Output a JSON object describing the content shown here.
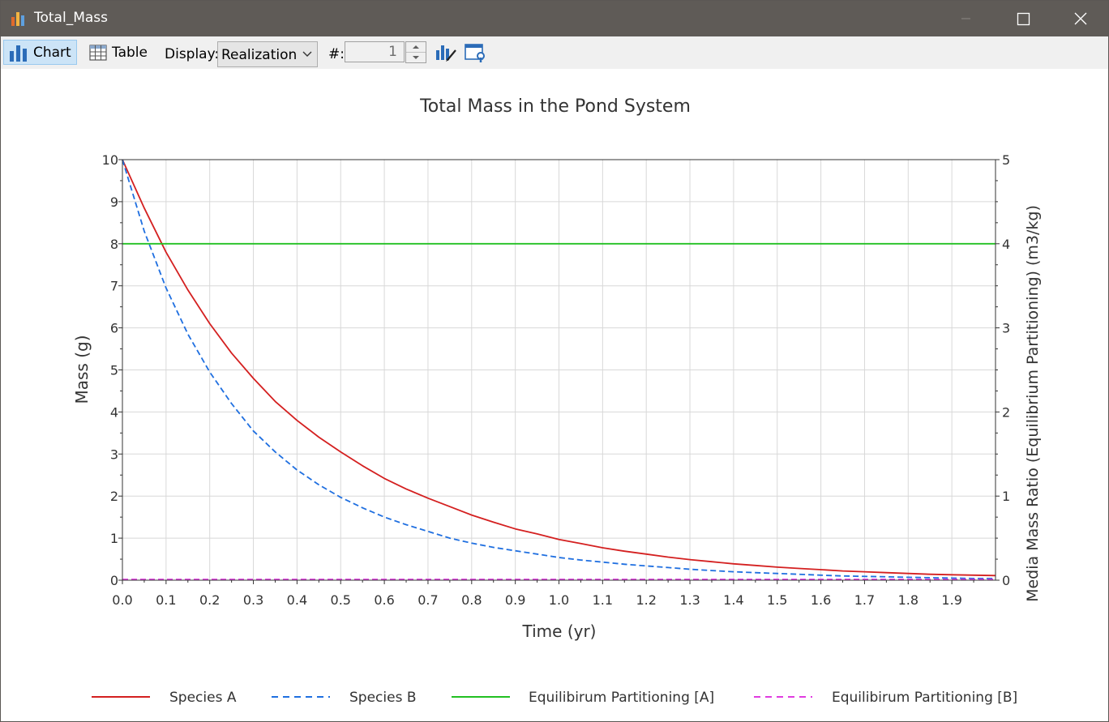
{
  "window": {
    "title": "Total_Mass"
  },
  "toolbar": {
    "chart_label": "Chart",
    "table_label": "Table",
    "display_label": "Display:",
    "display_value": "Realization",
    "realization_label": "#:",
    "realization_value": "1"
  },
  "chart_data": {
    "type": "line",
    "title": "Total Mass in the Pond System",
    "xlabel": "Time (yr)",
    "ylabel": "Mass (g)",
    "y2label": "Media Mass Ratio (Equilibrium Partitioning) (m3/kg)",
    "xlim": [
      0,
      2.0
    ],
    "ylim": [
      0,
      10
    ],
    "y2lim": [
      0,
      5
    ],
    "xticks": [
      "0.0",
      "0.1",
      "0.2",
      "0.3",
      "0.4",
      "0.5",
      "0.6",
      "0.7",
      "0.8",
      "0.9",
      "1.0",
      "1.1",
      "1.2",
      "1.3",
      "1.4",
      "1.5",
      "1.6",
      "1.7",
      "1.8",
      "1.9"
    ],
    "xtick_values": [
      0,
      0.1,
      0.2,
      0.3,
      0.4,
      0.5,
      0.6,
      0.7,
      0.8,
      0.9,
      1.0,
      1.1,
      1.2,
      1.3,
      1.4,
      1.5,
      1.6,
      1.7,
      1.8,
      1.9
    ],
    "yticks": [
      0,
      1,
      2,
      3,
      4,
      5,
      6,
      7,
      8,
      9,
      10
    ],
    "y2ticks": [
      0,
      1,
      2,
      3,
      4,
      5
    ],
    "grid": true,
    "legend_position": "bottom",
    "x": [
      0,
      0.05,
      0.1,
      0.15,
      0.2,
      0.25,
      0.3,
      0.35,
      0.4,
      0.45,
      0.5,
      0.55,
      0.6,
      0.65,
      0.7,
      0.75,
      0.8,
      0.85,
      0.9,
      0.95,
      1.0,
      1.05,
      1.1,
      1.15,
      1.2,
      1.25,
      1.3,
      1.35,
      1.4,
      1.45,
      1.5,
      1.55,
      1.6,
      1.65,
      1.7,
      1.75,
      1.8,
      1.85,
      1.9,
      1.95,
      2.0
    ],
    "series": [
      {
        "name": "Species A",
        "axis": "left",
        "color": "#d42020",
        "dash": "solid",
        "values": [
          10,
          8.85,
          7.8,
          6.9,
          6.1,
          5.4,
          4.8,
          4.25,
          3.8,
          3.4,
          3.05,
          2.72,
          2.42,
          2.17,
          1.95,
          1.75,
          1.55,
          1.38,
          1.22,
          1.1,
          0.97,
          0.87,
          0.77,
          0.69,
          0.62,
          0.55,
          0.49,
          0.44,
          0.39,
          0.35,
          0.31,
          0.28,
          0.25,
          0.22,
          0.2,
          0.18,
          0.16,
          0.14,
          0.13,
          0.12,
          0.11
        ]
      },
      {
        "name": "Species B",
        "axis": "left",
        "color": "#1f6fe0",
        "dash": "dashed",
        "values": [
          10,
          8.3,
          6.95,
          5.85,
          4.95,
          4.2,
          3.55,
          3.05,
          2.62,
          2.27,
          1.97,
          1.72,
          1.5,
          1.32,
          1.16,
          1.0,
          0.88,
          0.78,
          0.7,
          0.62,
          0.54,
          0.48,
          0.43,
          0.38,
          0.34,
          0.3,
          0.26,
          0.23,
          0.2,
          0.18,
          0.16,
          0.14,
          0.12,
          0.1,
          0.09,
          0.08,
          0.07,
          0.06,
          0.05,
          0.04,
          0.04
        ]
      },
      {
        "name": "Equilibirum Partitioning [A]",
        "axis": "right",
        "color": "#22c022",
        "dash": "solid",
        "values": [
          4,
          4,
          4,
          4,
          4,
          4,
          4,
          4,
          4,
          4,
          4,
          4,
          4,
          4,
          4,
          4,
          4,
          4,
          4,
          4,
          4,
          4,
          4,
          4,
          4,
          4,
          4,
          4,
          4,
          4,
          4,
          4,
          4,
          4,
          4,
          4,
          4,
          4,
          4,
          4,
          4
        ]
      },
      {
        "name": "Equilibirum Partitioning [B]",
        "axis": "right",
        "color": "#e03ce0",
        "dash": "dashed",
        "values": [
          0.01,
          0.01,
          0.01,
          0.01,
          0.01,
          0.01,
          0.01,
          0.01,
          0.01,
          0.01,
          0.01,
          0.01,
          0.01,
          0.01,
          0.01,
          0.01,
          0.01,
          0.01,
          0.01,
          0.01,
          0.01,
          0.01,
          0.01,
          0.01,
          0.01,
          0.01,
          0.01,
          0.01,
          0.01,
          0.01,
          0.01,
          0.01,
          0.01,
          0.01,
          0.01,
          0.01,
          0.01,
          0.01,
          0.01,
          0.01,
          0.01
        ]
      }
    ]
  }
}
